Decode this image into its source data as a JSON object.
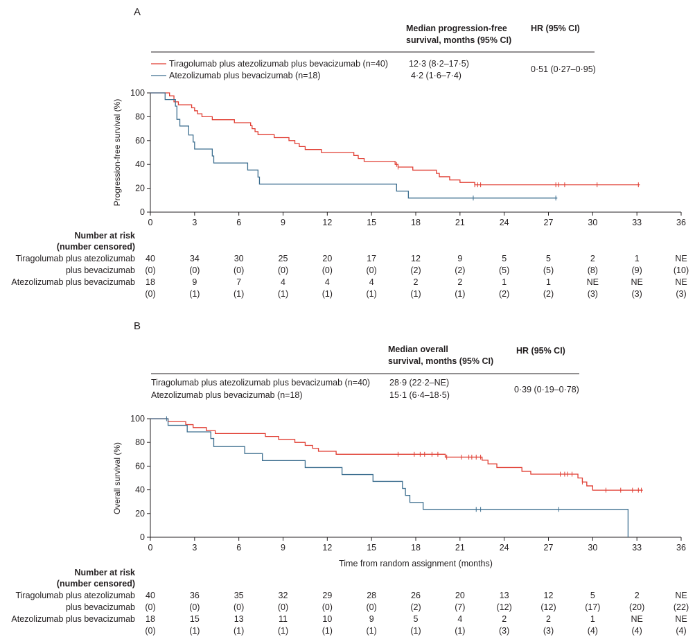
{
  "colors": {
    "tiragolumab": "#e03c31",
    "atezolizumab": "#3c6e8f",
    "axis": "#231f20"
  },
  "chart_data": [
    {
      "panel": "A",
      "type": "line",
      "ylabel": "Progression-free survival (%)",
      "xlabel": "",
      "xlim": [
        0,
        36
      ],
      "ylim": [
        0,
        100
      ],
      "xticks": [
        "0",
        "3",
        "6",
        "9",
        "12",
        "15",
        "18",
        "21",
        "24",
        "27",
        "30",
        "33",
        "36"
      ],
      "yticks": [
        "0",
        "20",
        "40",
        "60",
        "80",
        "100"
      ],
      "table": {
        "col1_header_line1": "Median progression-free",
        "col1_header_line2": "survival, months (95% CI)",
        "col2_header": "HR (95% CI)",
        "rows": [
          {
            "label": "Tiragolumab plus atezolizumab plus bevacizumab (n=40)",
            "median": "12·3 (8·2–17·5)"
          },
          {
            "label": "Atezolizumab plus bevacizumab (n=18)",
            "median": "4·2 (1·6–7·4)"
          }
        ],
        "hr": "0·51 (0·27–0·95)"
      },
      "series": [
        {
          "name": "Tiragolumab plus atezolizumab plus bevacizumab",
          "color": "#e03c31",
          "steps": [
            [
              0,
              100
            ],
            [
              1.3,
              97.5
            ],
            [
              1.6,
              92.5
            ],
            [
              1.9,
              90
            ],
            [
              2.8,
              87.5
            ],
            [
              3.0,
              85
            ],
            [
              3.2,
              82.5
            ],
            [
              3.5,
              80
            ],
            [
              4.2,
              77.5
            ],
            [
              5.7,
              75
            ],
            [
              6.8,
              72.5
            ],
            [
              6.9,
              70
            ],
            [
              7.1,
              67.5
            ],
            [
              7.3,
              65
            ],
            [
              8.4,
              62.5
            ],
            [
              9.4,
              60
            ],
            [
              9.8,
              57.5
            ],
            [
              10.1,
              55
            ],
            [
              10.5,
              52.5
            ],
            [
              11.6,
              50
            ],
            [
              13.8,
              47.5
            ],
            [
              14.1,
              45
            ],
            [
              14.5,
              42.5
            ],
            [
              16.6,
              40
            ],
            [
              16.8,
              37.8
            ],
            [
              17.8,
              35.2
            ],
            [
              19.4,
              32.5
            ],
            [
              19.6,
              29.7
            ],
            [
              20.3,
              27.0
            ],
            [
              21.0,
              24.9
            ],
            [
              22.0,
              22.9
            ]
          ],
          "end": 33.2,
          "censor": [
            16.7,
            16.8,
            22.0,
            22.2,
            22.4,
            27.5,
            27.7,
            28.1,
            30.3,
            33.1
          ]
        },
        {
          "name": "Atezolizumab plus bevacizumab",
          "color": "#3c6e8f",
          "steps": [
            [
              0,
              100
            ],
            [
              1.0,
              94.4
            ],
            [
              1.7,
              88.9
            ],
            [
              1.8,
              77.8
            ],
            [
              2.0,
              72.2
            ],
            [
              2.6,
              64.7
            ],
            [
              2.9,
              58.8
            ],
            [
              3.0,
              52.9
            ],
            [
              4.2,
              47.1
            ],
            [
              4.3,
              41.2
            ],
            [
              6.6,
              35.3
            ],
            [
              7.3,
              29.4
            ],
            [
              7.4,
              23.5
            ],
            [
              16.7,
              17.6
            ],
            [
              17.5,
              11.8
            ]
          ],
          "end": 27.6,
          "censor": [
            21.9,
            27.5
          ]
        }
      ],
      "risk": {
        "header_line1": "Number at risk",
        "header_line2": "(number censored)",
        "group1_line1": "Tiragolumab plus atezolizumab",
        "group1_line2": "plus bevacizumab",
        "group2": "Atezolizumab plus bevacizumab",
        "g1_atrisk": [
          "40",
          "34",
          "30",
          "25",
          "20",
          "17",
          "12",
          "9",
          "5",
          "5",
          "2",
          "1",
          "NE"
        ],
        "g1_censored": [
          "(0)",
          "(0)",
          "(0)",
          "(0)",
          "(0)",
          "(0)",
          "(2)",
          "(2)",
          "(5)",
          "(5)",
          "(8)",
          "(9)",
          "(10)"
        ],
        "g2_atrisk": [
          "18",
          "9",
          "7",
          "4",
          "4",
          "4",
          "2",
          "2",
          "1",
          "1",
          "NE",
          "NE",
          "NE"
        ],
        "g2_censored": [
          "(0)",
          "(1)",
          "(1)",
          "(1)",
          "(1)",
          "(1)",
          "(1)",
          "(1)",
          "(2)",
          "(2)",
          "(3)",
          "(3)",
          "(3)"
        ]
      }
    },
    {
      "panel": "B",
      "type": "line",
      "ylabel": "Overall survival (%)",
      "xlabel": "Time from random assignment (months)",
      "xlim": [
        0,
        36
      ],
      "ylim": [
        0,
        100
      ],
      "xticks": [
        "0",
        "3",
        "6",
        "9",
        "12",
        "15",
        "18",
        "21",
        "24",
        "27",
        "30",
        "33",
        "36"
      ],
      "yticks": [
        "0",
        "20",
        "40",
        "60",
        "80",
        "100"
      ],
      "table": {
        "col1_header_line1": "Median overall",
        "col1_header_line2": "survival, months (95% CI)",
        "col2_header": "HR (95% CI)",
        "rows": [
          {
            "label": "Tiragolumab plus atezolizumab plus bevacizumab (n=40)",
            "median": "28·9 (22·2–NE)"
          },
          {
            "label": "Atezolizumab plus bevacizumab (n=18)",
            "median": "15·1 (6·4–18·5)"
          }
        ],
        "hr": "0·39 (0·19–0·78)"
      },
      "series": [
        {
          "name": "Tiragolumab plus atezolizumab plus bevacizumab",
          "color": "#e03c31",
          "steps": [
            [
              0,
              100
            ],
            [
              1.2,
              97.5
            ],
            [
              2.4,
              95
            ],
            [
              2.9,
              92.5
            ],
            [
              3.8,
              90
            ],
            [
              4.4,
              87.5
            ],
            [
              7.8,
              85
            ],
            [
              8.7,
              82.5
            ],
            [
              9.8,
              80
            ],
            [
              10.5,
              77.5
            ],
            [
              11.0,
              75
            ],
            [
              11.4,
              72.5
            ],
            [
              12.6,
              70
            ],
            [
              20.0,
              67.6
            ],
            [
              22.5,
              65
            ],
            [
              22.9,
              61.9
            ],
            [
              23.5,
              58.8
            ],
            [
              25.2,
              55.6
            ],
            [
              25.8,
              53.2
            ],
            [
              29.0,
              50
            ],
            [
              29.3,
              46.6
            ],
            [
              29.6,
              43.3
            ],
            [
              30.0,
              39.7
            ]
          ],
          "end": 33.4,
          "censor": [
            16.8,
            17.9,
            18.3,
            18.6,
            19.1,
            19.5,
            20.1,
            21.1,
            21.6,
            21.8,
            22.1,
            22.4,
            27.8,
            28.1,
            28.3,
            28.6,
            29.3,
            30.9,
            31.9,
            32.7,
            33.1,
            33.3
          ]
        },
        {
          "name": "Atezolizumab plus bevacizumab",
          "color": "#3c6e8f",
          "steps": [
            [
              0,
              100
            ],
            [
              1.2,
              94.4
            ],
            [
              2.5,
              88.9
            ],
            [
              4.1,
              83.3
            ],
            [
              4.3,
              76.5
            ],
            [
              6.4,
              70.6
            ],
            [
              7.6,
              64.7
            ],
            [
              10.5,
              58.8
            ],
            [
              13.0,
              52.9
            ],
            [
              15.1,
              47.1
            ],
            [
              17.1,
              41.2
            ],
            [
              17.3,
              35.3
            ],
            [
              17.6,
              29.4
            ],
            [
              18.5,
              23.5
            ],
            [
              32.4,
              0
            ]
          ],
          "end": 32.4,
          "censor": [
            1.1,
            22.1,
            22.4,
            27.7
          ]
        }
      ],
      "risk": {
        "header_line1": "Number at risk",
        "header_line2": "(number censored)",
        "group1_line1": "Tiragolumab plus atezolizumab",
        "group1_line2": "plus bevacizumab",
        "group2": "Atezolizumab plus bevacizumab",
        "g1_atrisk": [
          "40",
          "36",
          "35",
          "32",
          "29",
          "28",
          "26",
          "20",
          "13",
          "12",
          "5",
          "2",
          "NE"
        ],
        "g1_censored": [
          "(0)",
          "(0)",
          "(0)",
          "(0)",
          "(0)",
          "(0)",
          "(2)",
          "(7)",
          "(12)",
          "(12)",
          "(17)",
          "(20)",
          "(22)"
        ],
        "g2_atrisk": [
          "18",
          "15",
          "13",
          "11",
          "10",
          "9",
          "5",
          "4",
          "2",
          "2",
          "1",
          "NE",
          "NE"
        ],
        "g2_censored": [
          "(0)",
          "(1)",
          "(1)",
          "(1)",
          "(1)",
          "(1)",
          "(1)",
          "(1)",
          "(3)",
          "(3)",
          "(4)",
          "(4)",
          "(4)"
        ]
      }
    }
  ]
}
